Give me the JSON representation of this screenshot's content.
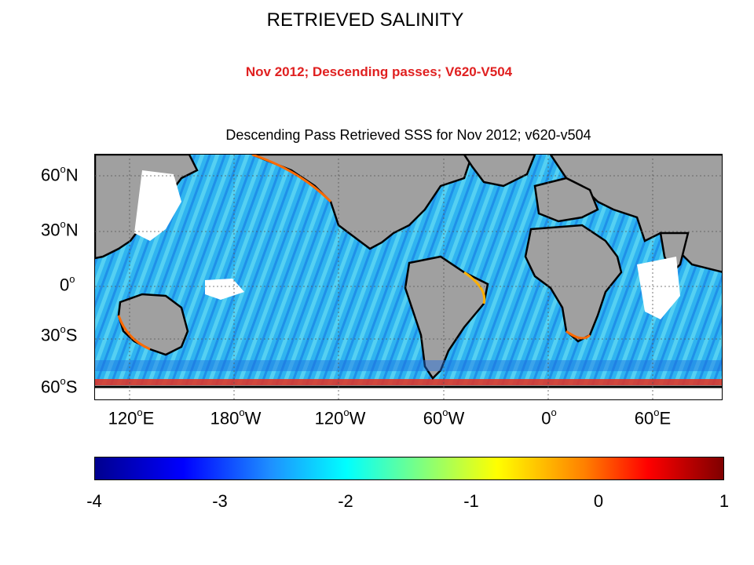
{
  "header": {
    "title": "RETRIEVED SALINITY",
    "subtitle": "Nov 2012; Descending passes; V620-V504"
  },
  "map": {
    "title": "Descending Pass Retrieved SSS for Nov 2012; v620-v504",
    "latitude_labels": [
      {
        "value": "60",
        "suffix": "N"
      },
      {
        "value": "30",
        "suffix": "N"
      },
      {
        "value": "0",
        "suffix": ""
      },
      {
        "value": "30",
        "suffix": "S"
      },
      {
        "value": "60",
        "suffix": "S"
      }
    ],
    "longitude_labels": [
      {
        "value": "120",
        "suffix": "E"
      },
      {
        "value": "180",
        "suffix": "W"
      },
      {
        "value": "120",
        "suffix": "W"
      },
      {
        "value": "60",
        "suffix": "W"
      },
      {
        "value": "0",
        "suffix": ""
      },
      {
        "value": "60",
        "suffix": "E"
      }
    ],
    "land_color": "#a0a0a0",
    "ocean_base_color": "#2fb4f0",
    "missing_color": "#ffffff",
    "coast_color": "#000000"
  },
  "colorbar": {
    "min": -4,
    "max": 1,
    "tick_labels": [
      "-4",
      "-3",
      "-2",
      "-1",
      "0",
      "1"
    ]
  }
}
